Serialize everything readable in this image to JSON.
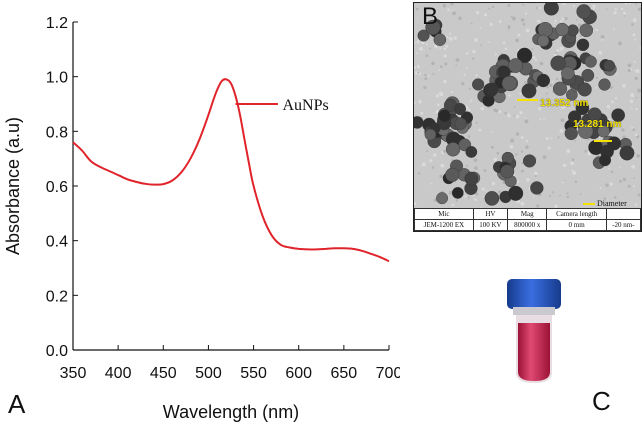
{
  "chart_data": {
    "type": "line",
    "xlabel": "Wavelength (nm)",
    "ylabel": "Absorbance (a.u)",
    "xlim": [
      350,
      700
    ],
    "ylim": [
      0.0,
      1.2
    ],
    "x_ticks": [
      "350",
      "400",
      "450",
      "500",
      "550",
      "600",
      "650",
      "700"
    ],
    "y_ticks": [
      "0.0",
      "0.2",
      "0.4",
      "0.6",
      "0.8",
      "1.0",
      "1.2"
    ],
    "grid": false,
    "legend_position": "top-right",
    "series": [
      {
        "name": "AuNPs",
        "color": "#e0242b",
        "x": [
          350,
          360,
          370,
          380,
          390,
          400,
          410,
          420,
          430,
          440,
          450,
          460,
          470,
          480,
          490,
          500,
          505,
          510,
          515,
          520,
          525,
          530,
          535,
          540,
          545,
          550,
          560,
          570,
          580,
          590,
          600,
          610,
          620,
          630,
          640,
          650,
          660,
          670,
          680,
          690,
          700
        ],
        "y": [
          0.76,
          0.73,
          0.69,
          0.67,
          0.655,
          0.64,
          0.625,
          0.615,
          0.608,
          0.605,
          0.607,
          0.62,
          0.65,
          0.7,
          0.77,
          0.86,
          0.91,
          0.955,
          0.985,
          0.99,
          0.975,
          0.93,
          0.86,
          0.77,
          0.68,
          0.6,
          0.49,
          0.42,
          0.385,
          0.375,
          0.37,
          0.368,
          0.368,
          0.37,
          0.372,
          0.372,
          0.37,
          0.363,
          0.352,
          0.34,
          0.325
        ]
      }
    ]
  },
  "panels": {
    "a_letter": "A",
    "b_letter": "B",
    "c_letter": "C"
  },
  "tem": {
    "measure_1": "13.352 nm",
    "measure_2": "13.281 nm",
    "legend": "Diameter",
    "table_headers": [
      "Mic",
      "HV",
      "Mag",
      "Camera length",
      ""
    ],
    "table_values": [
      "JEM-1200 EX",
      "100 KV",
      "800000 x",
      "0 mm",
      "-20 nm-"
    ]
  },
  "colors": {
    "curve": "#e0242b",
    "measure": "#f4e200",
    "vial_cap": "#1f4fb5",
    "vial_liquid": "#c21f4b"
  }
}
